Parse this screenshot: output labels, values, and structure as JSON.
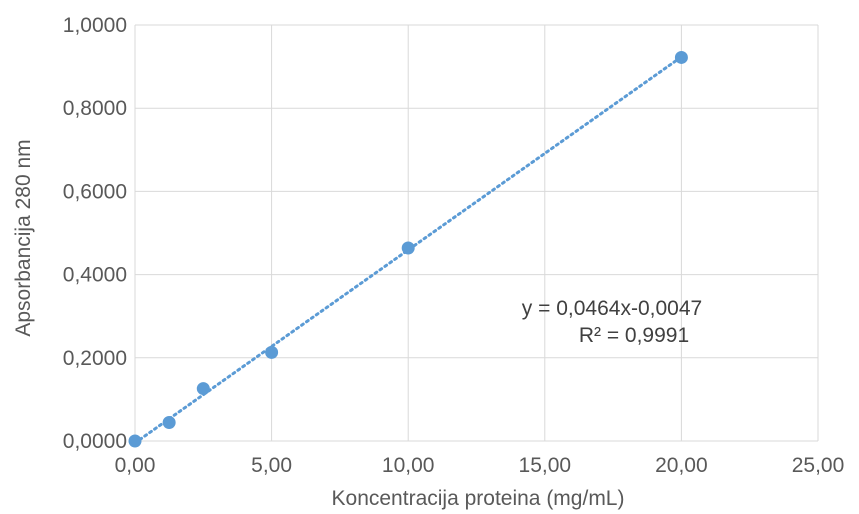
{
  "chart_data": {
    "type": "scatter",
    "title": "",
    "xlabel": "Koncentracija proteina (mg/mL)",
    "ylabel": "Apsorbancija 280 nm",
    "xlim": [
      0,
      25
    ],
    "ylim": [
      0,
      1
    ],
    "x_ticks": [
      0,
      5,
      10,
      15,
      20,
      25
    ],
    "y_ticks": [
      0,
      0.2,
      0.4,
      0.6,
      0.8,
      1.0
    ],
    "x_tick_labels": [
      "0,00",
      "5,00",
      "10,00",
      "15,00",
      "20,00",
      "25,00"
    ],
    "y_tick_labels": [
      "0,0000",
      "0,2000",
      "0,4000",
      "0,6000",
      "0,8000",
      "1,0000"
    ],
    "grid": true,
    "legend": "none",
    "series": [
      {
        "x": [
          0,
          1.25,
          2.5,
          5,
          10,
          20
        ],
        "y": [
          0,
          0.0445,
          0.126,
          0.213,
          0.464,
          0.922
        ],
        "color": "#5b9bd5"
      }
    ],
    "trendline": {
      "type": "linear",
      "slope": 0.0464,
      "intercept": -0.0047,
      "color": "#5b9bd5",
      "style": "dotted",
      "equation": "y = 0,0464x-0,0047",
      "r_squared": "R² = 0,9991"
    }
  }
}
